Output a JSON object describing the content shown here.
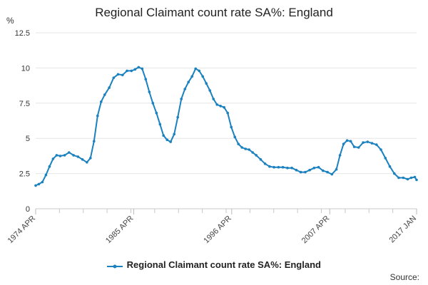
{
  "chart_data": {
    "type": "line",
    "title": "Regional Claimant count rate SA%: England",
    "ylabel": "%",
    "xlabel": "",
    "ylim": [
      0,
      12.5
    ],
    "yticks": [
      "0",
      "2.5",
      "5",
      "7.5",
      "10",
      "12.5"
    ],
    "xlim": [
      1974.25,
      2017.0
    ],
    "xticks": [
      {
        "label": "1974 APR",
        "value": 1974.25
      },
      {
        "label": "1985 APR",
        "value": 1985.25
      },
      {
        "label": "1996 APR",
        "value": 1996.25
      },
      {
        "label": "2007 APR",
        "value": 2007.25
      },
      {
        "label": "2017 JAN",
        "value": 2017.0
      }
    ],
    "grid": true,
    "legend_position": "bottom",
    "series": [
      {
        "name": "Regional Claimant count rate SA%: England",
        "color": "#1b81bf",
        "x": [
          1974.25,
          1974.6,
          1975.0,
          1975.4,
          1975.8,
          1976.2,
          1976.6,
          1977.0,
          1977.5,
          1978.0,
          1978.5,
          1979.0,
          1979.5,
          1980.0,
          1980.4,
          1980.8,
          1981.2,
          1981.6,
          1982.0,
          1982.5,
          1983.0,
          1983.5,
          1984.0,
          1984.5,
          1985.0,
          1985.4,
          1985.8,
          1986.2,
          1986.6,
          1987.0,
          1987.4,
          1987.8,
          1988.2,
          1988.6,
          1989.0,
          1989.4,
          1989.8,
          1990.2,
          1990.6,
          1991.0,
          1991.4,
          1991.8,
          1992.2,
          1992.6,
          1993.0,
          1993.4,
          1993.8,
          1994.2,
          1994.6,
          1995.0,
          1995.4,
          1995.8,
          1996.2,
          1996.6,
          1997.0,
          1997.4,
          1997.8,
          1998.2,
          1998.6,
          1999.0,
          1999.5,
          2000.0,
          2000.5,
          2001.0,
          2001.5,
          2002.0,
          2002.5,
          2003.0,
          2003.5,
          2004.0,
          2004.5,
          2005.0,
          2005.5,
          2006.0,
          2006.5,
          2007.0,
          2007.5,
          2008.0,
          2008.4,
          2008.8,
          2009.2,
          2009.6,
          2010.0,
          2010.5,
          2011.0,
          2011.5,
          2012.0,
          2012.5,
          2013.0,
          2013.5,
          2014.0,
          2014.5,
          2015.0,
          2015.5,
          2016.0,
          2016.4,
          2016.8,
          2017.0
        ],
        "values": [
          1.65,
          1.75,
          1.9,
          2.4,
          3.0,
          3.55,
          3.8,
          3.75,
          3.8,
          4.0,
          3.8,
          3.7,
          3.5,
          3.3,
          3.6,
          4.8,
          6.6,
          7.6,
          8.1,
          8.6,
          9.3,
          9.55,
          9.5,
          9.8,
          9.8,
          9.9,
          10.05,
          9.95,
          9.2,
          8.3,
          7.5,
          6.8,
          6.0,
          5.2,
          4.9,
          4.75,
          5.3,
          6.5,
          7.8,
          8.5,
          9.0,
          9.4,
          9.95,
          9.8,
          9.4,
          8.9,
          8.4,
          7.8,
          7.4,
          7.3,
          7.2,
          6.8,
          5.8,
          5.1,
          4.6,
          4.35,
          4.25,
          4.2,
          4.0,
          3.8,
          3.5,
          3.2,
          3.0,
          2.95,
          2.95,
          2.95,
          2.9,
          2.9,
          2.75,
          2.6,
          2.6,
          2.75,
          2.9,
          2.95,
          2.7,
          2.6,
          2.45,
          2.8,
          3.8,
          4.6,
          4.85,
          4.8,
          4.4,
          4.35,
          4.7,
          4.75,
          4.65,
          4.55,
          4.2,
          3.6,
          3.0,
          2.5,
          2.2,
          2.2,
          2.1,
          2.2,
          2.25,
          2.05
        ]
      }
    ]
  },
  "source_label": "Source:"
}
